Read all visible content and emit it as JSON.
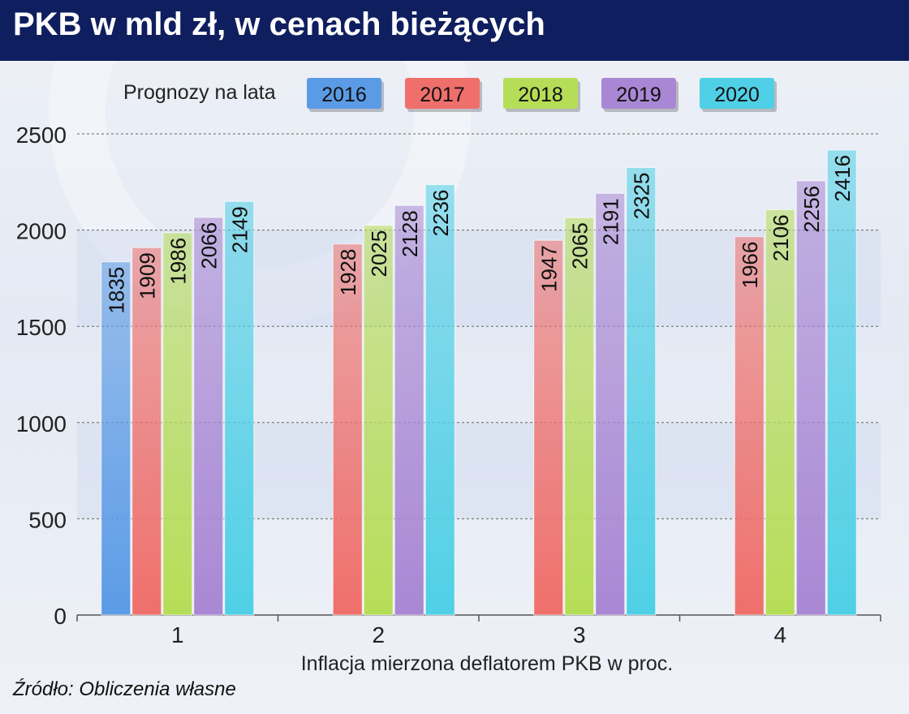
{
  "title": "PKB w mld zł, w cenach bieżących",
  "source": "Źródło: Obliczenia własne",
  "chart_data": {
    "type": "bar",
    "legend_title": "Prognozy na lata",
    "legend_position": "top",
    "categories": [
      "1",
      "2",
      "3",
      "4"
    ],
    "xlabel": "Inflacja mierzona deflatorem PKB w proc.",
    "ylabel": "",
    "ylim": [
      0,
      2500
    ],
    "yticks": [
      0,
      500,
      1000,
      1500,
      2000,
      2500
    ],
    "grid": true,
    "series": [
      {
        "name": "2016",
        "color": "#5b9be6",
        "values": [
          1835,
          null,
          null,
          null
        ]
      },
      {
        "name": "2017",
        "color": "#ef6f6b",
        "values": [
          1909,
          1928,
          1947,
          1966
        ]
      },
      {
        "name": "2018",
        "color": "#b6dd57",
        "values": [
          1986,
          2025,
          2065,
          2106
        ]
      },
      {
        "name": "2019",
        "color": "#a987d4",
        "values": [
          2066,
          2128,
          2191,
          2256
        ]
      },
      {
        "name": "2020",
        "color": "#4fd0e6",
        "values": [
          2149,
          2236,
          2325,
          2416
        ]
      }
    ]
  }
}
